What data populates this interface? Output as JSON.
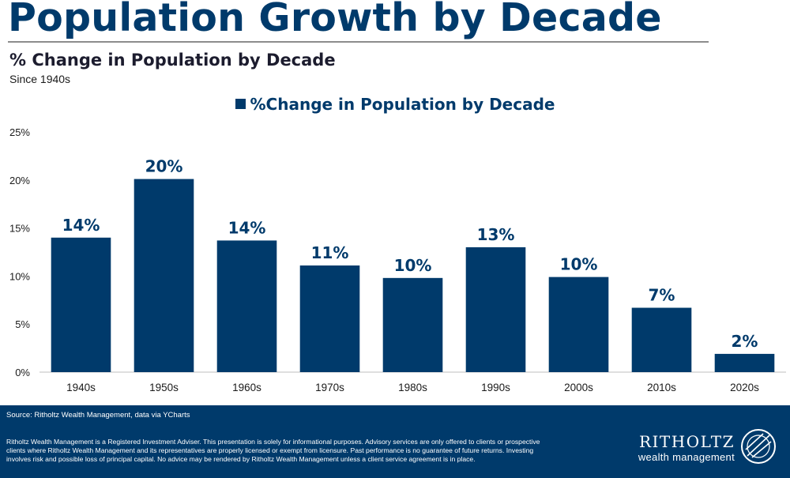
{
  "header": {
    "title": "Population Growth by Decade",
    "subtitle": "% Change in Population by Decade",
    "since": "Since 1940s"
  },
  "chart_data": {
    "type": "bar",
    "title": "% Change in Population by Decade",
    "legend": "%Change in Population by Decade",
    "categories": [
      "1940s",
      "1950s",
      "1960s",
      "1970s",
      "1980s",
      "1990s",
      "2000s",
      "2010s",
      "2020s"
    ],
    "values": [
      14.0,
      20.1,
      13.7,
      11.1,
      9.8,
      13.0,
      9.9,
      6.7,
      1.9
    ],
    "data_labels": [
      "14%",
      "20%",
      "14%",
      "11%",
      "10%",
      "13%",
      "10%",
      "7%",
      "2%"
    ],
    "yticks": [
      0,
      5,
      10,
      15,
      20,
      25
    ],
    "ytick_labels": [
      "0%",
      "5%",
      "10%",
      "15%",
      "20%",
      "25%"
    ],
    "ylim": [
      0,
      25
    ],
    "xlabel": "",
    "ylabel": "",
    "bar_color": "#003a6b"
  },
  "footer": {
    "source": "Source: Ritholtz Wealth Management, data  via YCharts",
    "disclaimer": "Ritholtz Wealth Management is a Registered Investment Adviser. This presentation is solely for informational purposes. Advisory services are only offered to clients or prospective clients where Ritholtz Wealth Management and its representatives are properly licensed or exempt from licensure. Past performance is no guarantee of future returns. Investing involves risk and possible loss of principal capital. No advice may be rendered by Ritholtz Wealth Management unless a client service agreement is in place.",
    "logo_name": "RITHOLTZ",
    "logo_sub": "wealth management"
  },
  "colors": {
    "brand": "#003a6b",
    "text": "#1a1a1a",
    "axis": "#bfbfbf"
  }
}
